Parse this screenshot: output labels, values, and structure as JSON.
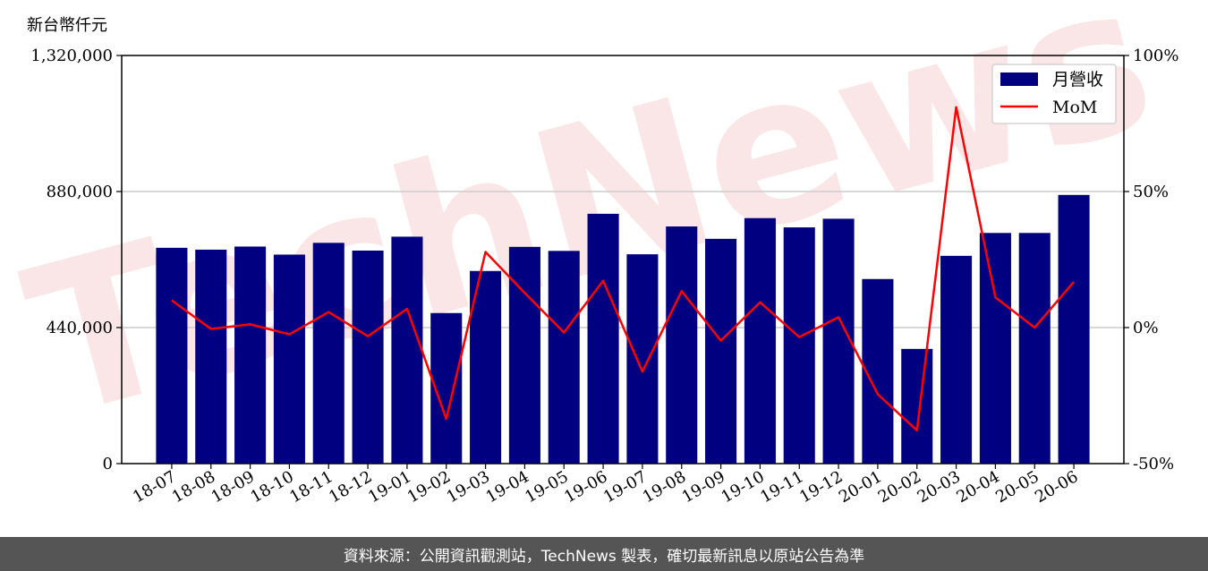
{
  "chart_data": {
    "type": "bar",
    "y_unit_label": "新台幣仟元",
    "categories": [
      "18-07",
      "18-08",
      "18-09",
      "18-10",
      "18-11",
      "18-12",
      "19-01",
      "19-02",
      "19-03",
      "19-04",
      "19-05",
      "19-06",
      "19-07",
      "19-08",
      "19-09",
      "19-10",
      "19-11",
      "19-12",
      "20-01",
      "20-02",
      "20-03",
      "20-04",
      "20-05",
      "20-06"
    ],
    "series": [
      {
        "name": "月營收",
        "kind": "bar",
        "axis": "left",
        "color": "#000080",
        "values": [
          698000,
          692000,
          702000,
          676000,
          714000,
          689000,
          734000,
          487000,
          623000,
          701000,
          688000,
          808000,
          677000,
          767000,
          727000,
          794000,
          764000,
          792000,
          597000,
          371000,
          672000,
          746000,
          746000,
          869000
        ]
      },
      {
        "name": "MoM",
        "kind": "line",
        "axis": "right",
        "color": "#ff0000",
        "values": [
          10,
          -0.5,
          1.2,
          -2.5,
          5.7,
          -3.2,
          6.9,
          -33.6,
          27.8,
          12.7,
          -1.8,
          17.2,
          -16.2,
          13.4,
          -4.8,
          9.3,
          -3.5,
          3.8,
          -24.5,
          -37.8,
          81,
          11.1,
          0,
          16.8
        ]
      }
    ],
    "ylim_left": [
      0,
      1320000
    ],
    "yticks_left": [
      "0",
      "440,000",
      "880,000",
      "1,320,000"
    ],
    "ylim_right": [
      -50,
      100
    ],
    "yticks_right": [
      "-50%",
      "0%",
      "50%",
      "100%"
    ],
    "grid": "horizontal",
    "legend_position": "top-right"
  },
  "watermark": "TechNews",
  "footer": {
    "text": "資料來源：公開資訊觀測站，TechNews 製表，確切最新訊息以原站公告為準"
  }
}
